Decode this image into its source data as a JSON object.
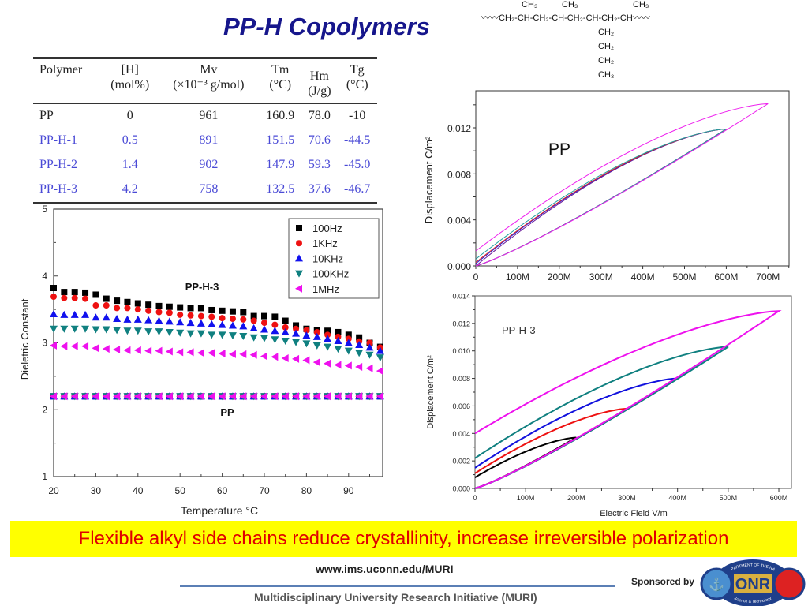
{
  "title": "PP-H Copolymers",
  "structure": {
    "backbone": "〰〰CH₂-CH-CH₂-CH-CH₂-CH-CH₂-CH〰〰",
    "methyl_1": "CH₃",
    "methyl_2": "CH₃",
    "methyl_3": "CH₃",
    "side_1": "CH₂",
    "side_2": "CH₂",
    "side_3": "CH₂",
    "side_end": "CH₃"
  },
  "table": {
    "headers": [
      {
        "line1": "Polymer",
        "line2": ""
      },
      {
        "line1": "[H]",
        "line2": "(mol%)"
      },
      {
        "line1": "Mv",
        "line2": "(×10⁻³ g/mol)"
      },
      {
        "line1": "Tm",
        "line2": "(°C)"
      },
      {
        "line1": "Hm",
        "line2": "(J/g)"
      },
      {
        "line1": "Tg",
        "line2": "(°C)"
      }
    ],
    "rows": [
      [
        "PP",
        "0",
        "961",
        "160.9",
        "78.0",
        "-10"
      ],
      [
        "PP-H-1",
        "0.5",
        "891",
        "151.5",
        "70.6",
        "-44.5"
      ],
      [
        "PP-H-2",
        "1.4",
        "902",
        "147.9",
        "59.3",
        "-45.0"
      ],
      [
        "PP-H-3",
        "4.2",
        "758",
        "132.5",
        "37.6",
        "-46.7"
      ]
    ]
  },
  "chart_data": [
    {
      "type": "scatter",
      "xlabel": "Temperature °C",
      "ylabel": "Dieletric Constant",
      "xlim": [
        20,
        98
      ],
      "ylim": [
        1,
        5
      ],
      "xticks": [
        "20",
        "30",
        "40",
        "50",
        "60",
        "70",
        "80",
        "90"
      ],
      "yticks": [
        "1",
        "2",
        "3",
        "4",
        "5"
      ],
      "legend_position": "top-right",
      "annotations": {
        "pph3": "PP-H-3",
        "pp": "PP"
      },
      "x": [
        20,
        22.5,
        25,
        27.5,
        30,
        32.5,
        35,
        37.5,
        40,
        42.5,
        45,
        47.5,
        50,
        52.5,
        55,
        57.5,
        60,
        62.5,
        65,
        67.5,
        70,
        72.5,
        75,
        77.5,
        80,
        82.5,
        85,
        87.5,
        90,
        92.5,
        95,
        97.5
      ],
      "pp_value_all_series": 2.2,
      "series": [
        {
          "name": "100Hz",
          "color": "#000000",
          "marker": "square",
          "values": [
            3.82,
            3.76,
            3.76,
            3.75,
            3.72,
            3.66,
            3.63,
            3.61,
            3.59,
            3.57,
            3.55,
            3.54,
            3.53,
            3.52,
            3.52,
            3.49,
            3.48,
            3.47,
            3.46,
            3.4,
            3.4,
            3.39,
            3.33,
            3.26,
            3.21,
            3.19,
            3.18,
            3.16,
            3.12,
            3.08,
            3.0,
            2.94
          ]
        },
        {
          "name": "1KHz",
          "color": "#ee1111",
          "marker": "circle",
          "values": [
            3.69,
            3.67,
            3.67,
            3.66,
            3.56,
            3.56,
            3.52,
            3.52,
            3.5,
            3.48,
            3.46,
            3.45,
            3.42,
            3.41,
            3.4,
            3.39,
            3.37,
            3.36,
            3.35,
            3.33,
            3.3,
            3.27,
            3.23,
            3.21,
            3.19,
            3.16,
            3.12,
            3.09,
            3.06,
            3.02,
            3.0,
            2.93
          ]
        },
        {
          "name": "10KHz",
          "color": "#1111ee",
          "marker": "triangle-up",
          "values": [
            3.43,
            3.42,
            3.42,
            3.42,
            3.38,
            3.38,
            3.36,
            3.35,
            3.35,
            3.34,
            3.33,
            3.32,
            3.31,
            3.3,
            3.29,
            3.28,
            3.27,
            3.26,
            3.25,
            3.22,
            3.2,
            3.18,
            3.16,
            3.14,
            3.11,
            3.09,
            3.06,
            3.03,
            3.0,
            2.97,
            2.93,
            2.88
          ]
        },
        {
          "name": "100KHz",
          "color": "#108080",
          "marker": "triangle-down",
          "values": [
            3.21,
            3.21,
            3.21,
            3.21,
            3.2,
            3.2,
            3.19,
            3.18,
            3.18,
            3.17,
            3.17,
            3.16,
            3.15,
            3.14,
            3.14,
            3.12,
            3.12,
            3.11,
            3.1,
            3.08,
            3.07,
            3.05,
            3.03,
            3.01,
            2.99,
            2.96,
            2.94,
            2.91,
            2.88,
            2.85,
            2.82,
            2.78
          ]
        },
        {
          "name": "1MHz",
          "color": "#ee11ee",
          "marker": "triangle-left",
          "values": [
            2.96,
            2.95,
            2.95,
            2.95,
            2.92,
            2.91,
            2.9,
            2.89,
            2.89,
            2.88,
            2.88,
            2.87,
            2.86,
            2.86,
            2.85,
            2.85,
            2.84,
            2.83,
            2.83,
            2.82,
            2.8,
            2.79,
            2.77,
            2.76,
            2.74,
            2.71,
            2.69,
            2.67,
            2.66,
            2.64,
            2.62,
            2.58
          ]
        }
      ]
    },
    {
      "type": "line",
      "ylabel": "Displacement C/m²",
      "xlabel": "",
      "xlim": [
        0,
        750
      ],
      "ylim": [
        0,
        0.0152
      ],
      "xticks": [
        "0",
        "100M",
        "200M",
        "300M",
        "400M",
        "500M",
        "600M",
        "700M"
      ],
      "yticks": [
        "0.000",
        "0.004",
        "0.008",
        "0.012"
      ],
      "annotation": "PP",
      "loops": [
        {
          "color": "#6a1a9a",
          "e_max_M": 600,
          "d_max": 0.0119,
          "d_remnant": 0.0
        },
        {
          "color": "#2222dd",
          "e_max_M": 600,
          "d_max": 0.0119,
          "d_remnant": 0.0002
        },
        {
          "color": "#dd2222",
          "e_max_M": 600,
          "d_max": 0.0119,
          "d_remnant": 0.0003
        },
        {
          "color": "#20a0a0",
          "e_max_M": 600,
          "d_max": 0.0119,
          "d_remnant": 0.0006
        },
        {
          "color": "#ee22ee",
          "e_max_M": 700,
          "d_max": 0.0141,
          "d_remnant": 0.0013
        }
      ]
    },
    {
      "type": "line",
      "xlabel": "Electric Field V/m",
      "ylabel": "Displacement C/m²",
      "xlim": [
        0,
        625
      ],
      "ylim": [
        0,
        0.014
      ],
      "xticks": [
        "0",
        "100M",
        "200M",
        "300M",
        "400M",
        "500M",
        "600M"
      ],
      "yticks": [
        "0.000",
        "0.002",
        "0.004",
        "0.006",
        "0.008",
        "0.010",
        "0.012",
        "0.014"
      ],
      "annotation": "PP-H-3",
      "loops": [
        {
          "color": "#000000",
          "e_max_M": 200,
          "d_max": 0.0037,
          "d_remnant": 0.0008
        },
        {
          "color": "#ee1111",
          "e_max_M": 300,
          "d_max": 0.0058,
          "d_remnant": 0.0011
        },
        {
          "color": "#1111dd",
          "e_max_M": 400,
          "d_max": 0.008,
          "d_remnant": 0.0015
        },
        {
          "color": "#108080",
          "e_max_M": 500,
          "d_max": 0.0103,
          "d_remnant": 0.0022
        },
        {
          "color": "#ee11ee",
          "e_max_M": 600,
          "d_max": 0.0129,
          "d_remnant": 0.004
        }
      ]
    }
  ],
  "banner": "Flexible alkyl side chains reduce crystallinity, increase irreversible polarization",
  "footer": {
    "url": "www.ims.uconn.edu/MURI",
    "program": "Multidisciplinary University Research Initiative (MURI)",
    "sponsored_by": "Sponsored by",
    "logo_text": "ONR",
    "logo_ring_top": "DEPARTMENT OF THE NAVY",
    "logo_ring_bottom": "Science & Technology"
  },
  "colors": {
    "title": "#16168c",
    "banner_bg": "#ffff00",
    "banner_text": "#e00000",
    "table_blue": "#4a4ad6"
  }
}
